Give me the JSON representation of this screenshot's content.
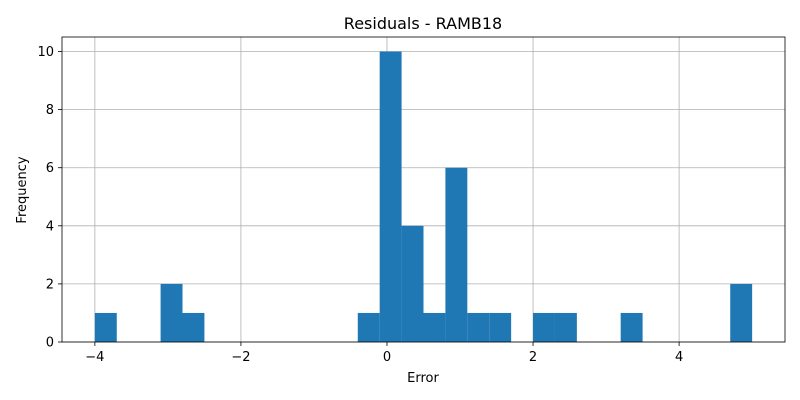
{
  "chart_data": {
    "type": "histogram",
    "title": "Residuals - RAMB18",
    "xlabel": "Error",
    "ylabel": "Frequency",
    "xlim": [
      -4.45,
      5.45
    ],
    "ylim": [
      0,
      10.5
    ],
    "xticks": [
      -4,
      -2,
      0,
      2,
      4
    ],
    "yticks": [
      0,
      2,
      4,
      6,
      8,
      10
    ],
    "grid": true,
    "bar_color": "#1f77b4",
    "bin_width": 0.3,
    "bins": [
      {
        "x0": -4.0,
        "count": 1
      },
      {
        "x0": -3.7,
        "count": 0
      },
      {
        "x0": -3.4,
        "count": 0
      },
      {
        "x0": -3.1,
        "count": 2
      },
      {
        "x0": -2.8,
        "count": 1
      },
      {
        "x0": -2.5,
        "count": 0
      },
      {
        "x0": -2.2,
        "count": 0
      },
      {
        "x0": -1.9,
        "count": 0
      },
      {
        "x0": -1.6,
        "count": 0
      },
      {
        "x0": -1.3,
        "count": 0
      },
      {
        "x0": -1.0,
        "count": 0
      },
      {
        "x0": -0.7,
        "count": 0
      },
      {
        "x0": -0.4,
        "count": 1
      },
      {
        "x0": -0.1,
        "count": 10
      },
      {
        "x0": 0.2,
        "count": 4
      },
      {
        "x0": 0.5,
        "count": 1
      },
      {
        "x0": 0.8,
        "count": 6
      },
      {
        "x0": 1.1,
        "count": 1
      },
      {
        "x0": 1.4,
        "count": 1
      },
      {
        "x0": 1.7,
        "count": 0
      },
      {
        "x0": 2.0,
        "count": 1
      },
      {
        "x0": 2.3,
        "count": 1
      },
      {
        "x0": 2.6,
        "count": 0
      },
      {
        "x0": 2.9,
        "count": 0
      },
      {
        "x0": 3.2,
        "count": 1
      },
      {
        "x0": 3.5,
        "count": 0
      },
      {
        "x0": 3.8,
        "count": 0
      },
      {
        "x0": 4.1,
        "count": 0
      },
      {
        "x0": 4.4,
        "count": 0
      },
      {
        "x0": 4.7,
        "count": 2
      }
    ]
  }
}
